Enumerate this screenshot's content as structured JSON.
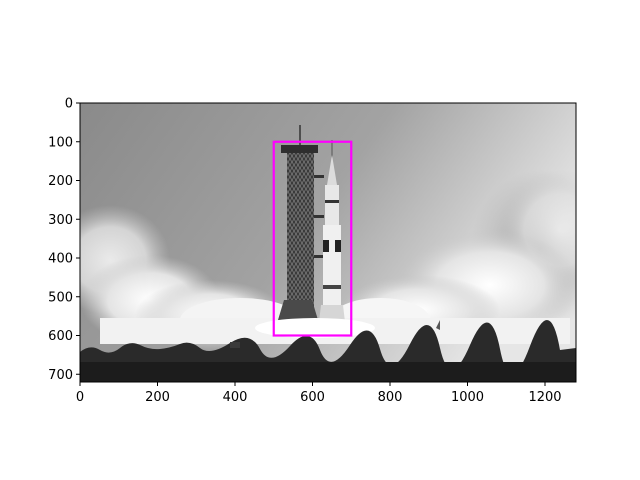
{
  "figure": {
    "background_color": "#ffffff",
    "axis_color": "#000000"
  },
  "image": {
    "description": "grayscale photograph of a rocket launch beside a tower, billowing exhaust clouds, tree line in foreground",
    "data_width": 1280,
    "data_height": 720,
    "colormap": "grayscale"
  },
  "axes": {
    "x_ticks": [
      0,
      200,
      400,
      600,
      800,
      1000,
      1200
    ],
    "y_ticks": [
      0,
      100,
      200,
      300,
      400,
      500,
      600,
      700
    ],
    "xlim": [
      0,
      1280
    ],
    "ylim": [
      720,
      0
    ],
    "y_inverted": true
  },
  "bounding_box": {
    "x_min": 500,
    "y_min": 100,
    "x_max": 700,
    "y_max": 600,
    "color": "#ff00ff"
  }
}
